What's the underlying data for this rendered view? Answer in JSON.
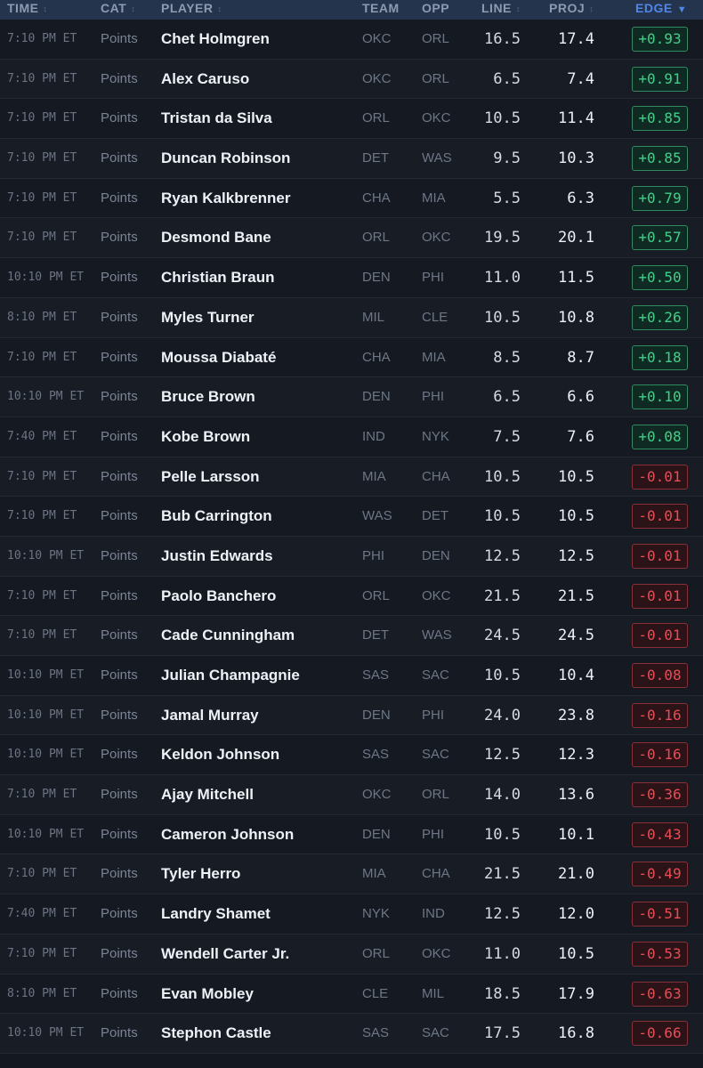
{
  "header": {
    "time": "TIME",
    "cat": "CAT",
    "player": "PLAYER",
    "team": "TEAM",
    "opp": "OPP",
    "line": "LINE",
    "proj": "PROJ",
    "edge": "EDGE"
  },
  "sort_icons": {
    "inactive": "sort-updown-icon",
    "active": "sort-desc-icon"
  },
  "colors": {
    "positive": "#3bd18a",
    "negative": "#ec4a55",
    "header_bg": "#25344d",
    "accent": "#4f86e8"
  },
  "rows": [
    {
      "time": "7:10 PM ET",
      "cat": "Points",
      "player": "Chet Holmgren",
      "team": "OKC",
      "opp": "ORL",
      "line": "16.5",
      "proj": "17.4",
      "edge": "+0.93",
      "sign": "pos"
    },
    {
      "time": "7:10 PM ET",
      "cat": "Points",
      "player": "Alex Caruso",
      "team": "OKC",
      "opp": "ORL",
      "line": "6.5",
      "proj": "7.4",
      "edge": "+0.91",
      "sign": "pos"
    },
    {
      "time": "7:10 PM ET",
      "cat": "Points",
      "player": "Tristan da Silva",
      "team": "ORL",
      "opp": "OKC",
      "line": "10.5",
      "proj": "11.4",
      "edge": "+0.85",
      "sign": "pos"
    },
    {
      "time": "7:10 PM ET",
      "cat": "Points",
      "player": "Duncan Robinson",
      "team": "DET",
      "opp": "WAS",
      "line": "9.5",
      "proj": "10.3",
      "edge": "+0.85",
      "sign": "pos"
    },
    {
      "time": "7:10 PM ET",
      "cat": "Points",
      "player": "Ryan Kalkbrenner",
      "team": "CHA",
      "opp": "MIA",
      "line": "5.5",
      "proj": "6.3",
      "edge": "+0.79",
      "sign": "pos"
    },
    {
      "time": "7:10 PM ET",
      "cat": "Points",
      "player": "Desmond Bane",
      "team": "ORL",
      "opp": "OKC",
      "line": "19.5",
      "proj": "20.1",
      "edge": "+0.57",
      "sign": "pos"
    },
    {
      "time": "10:10 PM ET",
      "cat": "Points",
      "player": "Christian Braun",
      "team": "DEN",
      "opp": "PHI",
      "line": "11.0",
      "proj": "11.5",
      "edge": "+0.50",
      "sign": "pos"
    },
    {
      "time": "8:10 PM ET",
      "cat": "Points",
      "player": "Myles Turner",
      "team": "MIL",
      "opp": "CLE",
      "line": "10.5",
      "proj": "10.8",
      "edge": "+0.26",
      "sign": "pos"
    },
    {
      "time": "7:10 PM ET",
      "cat": "Points",
      "player": "Moussa Diabaté",
      "team": "CHA",
      "opp": "MIA",
      "line": "8.5",
      "proj": "8.7",
      "edge": "+0.18",
      "sign": "pos"
    },
    {
      "time": "10:10 PM ET",
      "cat": "Points",
      "player": "Bruce Brown",
      "team": "DEN",
      "opp": "PHI",
      "line": "6.5",
      "proj": "6.6",
      "edge": "+0.10",
      "sign": "pos"
    },
    {
      "time": "7:40 PM ET",
      "cat": "Points",
      "player": "Kobe Brown",
      "team": "IND",
      "opp": "NYK",
      "line": "7.5",
      "proj": "7.6",
      "edge": "+0.08",
      "sign": "pos"
    },
    {
      "time": "7:10 PM ET",
      "cat": "Points",
      "player": "Pelle Larsson",
      "team": "MIA",
      "opp": "CHA",
      "line": "10.5",
      "proj": "10.5",
      "edge": "-0.01",
      "sign": "neg"
    },
    {
      "time": "7:10 PM ET",
      "cat": "Points",
      "player": "Bub Carrington",
      "team": "WAS",
      "opp": "DET",
      "line": "10.5",
      "proj": "10.5",
      "edge": "-0.01",
      "sign": "neg"
    },
    {
      "time": "10:10 PM ET",
      "cat": "Points",
      "player": "Justin Edwards",
      "team": "PHI",
      "opp": "DEN",
      "line": "12.5",
      "proj": "12.5",
      "edge": "-0.01",
      "sign": "neg"
    },
    {
      "time": "7:10 PM ET",
      "cat": "Points",
      "player": "Paolo Banchero",
      "team": "ORL",
      "opp": "OKC",
      "line": "21.5",
      "proj": "21.5",
      "edge": "-0.01",
      "sign": "neg"
    },
    {
      "time": "7:10 PM ET",
      "cat": "Points",
      "player": "Cade Cunningham",
      "team": "DET",
      "opp": "WAS",
      "line": "24.5",
      "proj": "24.5",
      "edge": "-0.01",
      "sign": "neg"
    },
    {
      "time": "10:10 PM ET",
      "cat": "Points",
      "player": "Julian Champagnie",
      "team": "SAS",
      "opp": "SAC",
      "line": "10.5",
      "proj": "10.4",
      "edge": "-0.08",
      "sign": "neg"
    },
    {
      "time": "10:10 PM ET",
      "cat": "Points",
      "player": "Jamal Murray",
      "team": "DEN",
      "opp": "PHI",
      "line": "24.0",
      "proj": "23.8",
      "edge": "-0.16",
      "sign": "neg"
    },
    {
      "time": "10:10 PM ET",
      "cat": "Points",
      "player": "Keldon Johnson",
      "team": "SAS",
      "opp": "SAC",
      "line": "12.5",
      "proj": "12.3",
      "edge": "-0.16",
      "sign": "neg"
    },
    {
      "time": "7:10 PM ET",
      "cat": "Points",
      "player": "Ajay Mitchell",
      "team": "OKC",
      "opp": "ORL",
      "line": "14.0",
      "proj": "13.6",
      "edge": "-0.36",
      "sign": "neg"
    },
    {
      "time": "10:10 PM ET",
      "cat": "Points",
      "player": "Cameron Johnson",
      "team": "DEN",
      "opp": "PHI",
      "line": "10.5",
      "proj": "10.1",
      "edge": "-0.43",
      "sign": "neg"
    },
    {
      "time": "7:10 PM ET",
      "cat": "Points",
      "player": "Tyler Herro",
      "team": "MIA",
      "opp": "CHA",
      "line": "21.5",
      "proj": "21.0",
      "edge": "-0.49",
      "sign": "neg"
    },
    {
      "time": "7:40 PM ET",
      "cat": "Points",
      "player": "Landry Shamet",
      "team": "NYK",
      "opp": "IND",
      "line": "12.5",
      "proj": "12.0",
      "edge": "-0.51",
      "sign": "neg"
    },
    {
      "time": "7:10 PM ET",
      "cat": "Points",
      "player": "Wendell Carter Jr.",
      "team": "ORL",
      "opp": "OKC",
      "line": "11.0",
      "proj": "10.5",
      "edge": "-0.53",
      "sign": "neg"
    },
    {
      "time": "8:10 PM ET",
      "cat": "Points",
      "player": "Evan Mobley",
      "team": "CLE",
      "opp": "MIL",
      "line": "18.5",
      "proj": "17.9",
      "edge": "-0.63",
      "sign": "neg"
    },
    {
      "time": "10:10 PM ET",
      "cat": "Points",
      "player": "Stephon Castle",
      "team": "SAS",
      "opp": "SAC",
      "line": "17.5",
      "proj": "16.8",
      "edge": "-0.66",
      "sign": "neg"
    }
  ]
}
